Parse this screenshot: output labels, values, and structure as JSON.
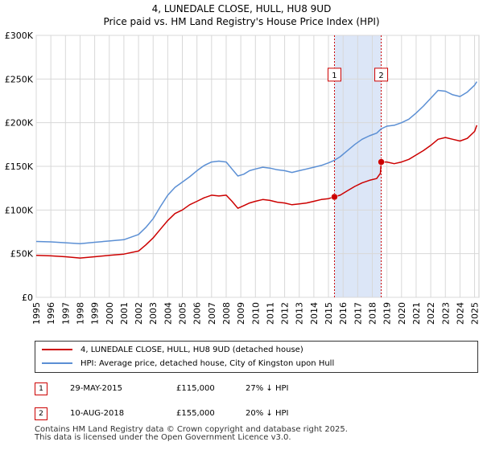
{
  "title": {
    "line1": "4, LUNEDALE CLOSE, HULL, HU8 9UD",
    "line2": "Price paid vs. HM Land Registry's House Price Index (HPI)"
  },
  "colors": {
    "property": "#cc0000",
    "hpi": "#5b8fd4",
    "shade": "#dce6f7",
    "grid": "#d8d8d8",
    "marker_border": "#cc0000"
  },
  "chart_data": {
    "type": "line",
    "title": "4, LUNEDALE CLOSE, HULL, HU8 9UD",
    "subtitle": "Price paid vs. HM Land Registry's House Price Index (HPI)",
    "xlabel": "",
    "ylabel": "",
    "xlim": [
      1995.0,
      2025.3
    ],
    "ylim": [
      0,
      300000
    ],
    "y_ticks": [
      {
        "value": 0,
        "label": "£0"
      },
      {
        "value": 50000,
        "label": "£50K"
      },
      {
        "value": 100000,
        "label": "£100K"
      },
      {
        "value": 150000,
        "label": "£150K"
      },
      {
        "value": 200000,
        "label": "£200K"
      },
      {
        "value": 250000,
        "label": "£250K"
      },
      {
        "value": 300000,
        "label": "£300K"
      }
    ],
    "x_ticks": [
      "1995",
      "1996",
      "1997",
      "1998",
      "1999",
      "2000",
      "2001",
      "2002",
      "2003",
      "2004",
      "2005",
      "2006",
      "2007",
      "2008",
      "2009",
      "2010",
      "2011",
      "2012",
      "2013",
      "2014",
      "2015",
      "2016",
      "2017",
      "2018",
      "2019",
      "2020",
      "2021",
      "2022",
      "2023",
      "2024",
      "2025"
    ],
    "grid": true,
    "shaded_span": [
      2015.41,
      2018.61
    ],
    "series": [
      {
        "name": "4, LUNEDALE CLOSE, HULL, HU8 9UD (detached house)",
        "color": "#cc0000",
        "points": [
          [
            1995.0,
            48000
          ],
          [
            1996.0,
            47500
          ],
          [
            1997.0,
            46500
          ],
          [
            1998.0,
            45000
          ],
          [
            1999.0,
            46500
          ],
          [
            2000.0,
            48000
          ],
          [
            2001.0,
            49500
          ],
          [
            2002.0,
            53000
          ],
          [
            2002.5,
            60000
          ],
          [
            2003.0,
            68000
          ],
          [
            2003.5,
            78000
          ],
          [
            2004.0,
            88000
          ],
          [
            2004.5,
            96000
          ],
          [
            2005.0,
            100000
          ],
          [
            2005.5,
            106000
          ],
          [
            2006.0,
            110000
          ],
          [
            2006.5,
            114000
          ],
          [
            2007.0,
            117000
          ],
          [
            2007.5,
            116000
          ],
          [
            2008.0,
            117000
          ],
          [
            2008.4,
            110000
          ],
          [
            2008.8,
            102000
          ],
          [
            2009.2,
            105000
          ],
          [
            2009.6,
            108000
          ],
          [
            2010.0,
            110000
          ],
          [
            2010.5,
            112000
          ],
          [
            2011.0,
            111000
          ],
          [
            2011.5,
            109000
          ],
          [
            2012.0,
            108000
          ],
          [
            2012.5,
            106000
          ],
          [
            2013.0,
            107000
          ],
          [
            2013.5,
            108000
          ],
          [
            2014.0,
            110000
          ],
          [
            2014.5,
            112000
          ],
          [
            2015.0,
            113000
          ],
          [
            2015.41,
            115000
          ],
          [
            2015.8,
            117000
          ],
          [
            2016.3,
            122000
          ],
          [
            2016.8,
            127000
          ],
          [
            2017.3,
            131000
          ],
          [
            2017.8,
            134000
          ],
          [
            2018.3,
            136000
          ],
          [
            2018.55,
            142000
          ],
          [
            2018.61,
            155000
          ],
          [
            2019.0,
            155000
          ],
          [
            2019.5,
            153000
          ],
          [
            2020.0,
            155000
          ],
          [
            2020.5,
            158000
          ],
          [
            2021.0,
            163000
          ],
          [
            2021.5,
            168000
          ],
          [
            2022.0,
            174000
          ],
          [
            2022.5,
            181000
          ],
          [
            2023.0,
            183000
          ],
          [
            2023.5,
            181000
          ],
          [
            2024.0,
            179000
          ],
          [
            2024.5,
            182000
          ],
          [
            2025.0,
            190000
          ],
          [
            2025.15,
            197000
          ]
        ]
      },
      {
        "name": "HPI: Average price, detached house, City of Kingston upon Hull",
        "color": "#5b8fd4",
        "points": [
          [
            1995.0,
            64000
          ],
          [
            1996.0,
            63500
          ],
          [
            1997.0,
            62500
          ],
          [
            1998.0,
            61500
          ],
          [
            1999.0,
            63000
          ],
          [
            2000.0,
            64500
          ],
          [
            2001.0,
            66000
          ],
          [
            2002.0,
            72000
          ],
          [
            2002.5,
            80000
          ],
          [
            2003.0,
            90000
          ],
          [
            2003.5,
            104000
          ],
          [
            2004.0,
            117000
          ],
          [
            2004.5,
            126000
          ],
          [
            2005.0,
            132000
          ],
          [
            2005.5,
            138000
          ],
          [
            2006.0,
            145000
          ],
          [
            2006.5,
            151000
          ],
          [
            2007.0,
            155000
          ],
          [
            2007.5,
            156000
          ],
          [
            2008.0,
            155000
          ],
          [
            2008.4,
            147000
          ],
          [
            2008.8,
            139000
          ],
          [
            2009.2,
            141000
          ],
          [
            2009.6,
            145000
          ],
          [
            2010.0,
            147000
          ],
          [
            2010.5,
            149000
          ],
          [
            2011.0,
            148000
          ],
          [
            2011.5,
            146000
          ],
          [
            2012.0,
            145000
          ],
          [
            2012.5,
            143000
          ],
          [
            2013.0,
            145000
          ],
          [
            2013.5,
            147000
          ],
          [
            2014.0,
            149000
          ],
          [
            2014.5,
            151000
          ],
          [
            2015.0,
            154000
          ],
          [
            2015.41,
            157000
          ],
          [
            2015.8,
            161000
          ],
          [
            2016.3,
            168000
          ],
          [
            2016.8,
            175000
          ],
          [
            2017.3,
            181000
          ],
          [
            2017.8,
            185000
          ],
          [
            2018.3,
            188000
          ],
          [
            2018.61,
            193000
          ],
          [
            2019.0,
            196000
          ],
          [
            2019.5,
            197000
          ],
          [
            2020.0,
            200000
          ],
          [
            2020.5,
            204000
          ],
          [
            2021.0,
            211000
          ],
          [
            2021.5,
            219000
          ],
          [
            2022.0,
            228000
          ],
          [
            2022.5,
            237000
          ],
          [
            2023.0,
            236000
          ],
          [
            2023.5,
            232000
          ],
          [
            2024.0,
            230000
          ],
          [
            2024.5,
            235000
          ],
          [
            2025.0,
            243000
          ],
          [
            2025.15,
            247000
          ]
        ]
      }
    ],
    "sale_markers": [
      {
        "label": "1",
        "x": 2015.41,
        "y": 115000
      },
      {
        "label": "2",
        "x": 2018.61,
        "y": 155000
      }
    ]
  },
  "legend": {
    "property_label": "4, LUNEDALE CLOSE, HULL, HU8 9UD (detached house)",
    "hpi_label": "HPI: Average price, detached house, City of Kingston upon Hull"
  },
  "sales": [
    {
      "badge": "1",
      "date": "29-MAY-2015",
      "price": "£115,000",
      "hpi": "27% ↓ HPI"
    },
    {
      "badge": "2",
      "date": "10-AUG-2018",
      "price": "£155,000",
      "hpi": "20% ↓ HPI"
    }
  ],
  "footer": {
    "line1": "Contains HM Land Registry data © Crown copyright and database right 2025.",
    "line2": "This data is licensed under the Open Government Licence v3.0."
  }
}
